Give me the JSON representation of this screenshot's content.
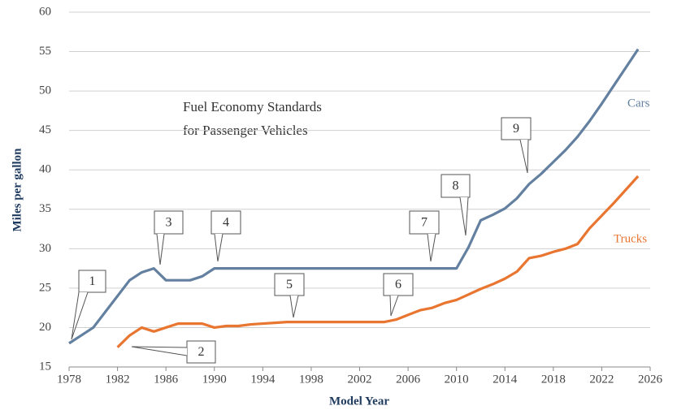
{
  "chart_data": {
    "type": "line",
    "title": [
      "Fuel Economy Standards",
      "for Passenger Vehicles"
    ],
    "xlabel": "Model Year",
    "ylabel": "Miles per gallon",
    "x": [
      1978,
      1979,
      1980,
      1981,
      1982,
      1983,
      1984,
      1985,
      1986,
      1987,
      1988,
      1989,
      1990,
      1991,
      1992,
      1993,
      1994,
      1995,
      1996,
      1997,
      1998,
      1999,
      2000,
      2001,
      2002,
      2003,
      2004,
      2005,
      2006,
      2007,
      2008,
      2009,
      2010,
      2011,
      2012,
      2013,
      2014,
      2015,
      2016,
      2017,
      2018,
      2019,
      2020,
      2021,
      2022,
      2023,
      2024,
      2025
    ],
    "series": [
      {
        "name": "Cars",
        "color": "#6480a0",
        "values": [
          18,
          19,
          20,
          22,
          24,
          26,
          27,
          27.5,
          26,
          26,
          26,
          26.5,
          27.5,
          27.5,
          27.5,
          27.5,
          27.5,
          27.5,
          27.5,
          27.5,
          27.5,
          27.5,
          27.5,
          27.5,
          27.5,
          27.5,
          27.5,
          27.5,
          27.5,
          27.5,
          27.5,
          27.5,
          27.5,
          30.2,
          33.6,
          34.3,
          35.1,
          36.4,
          38.2,
          39.5,
          41,
          42.5,
          44.2,
          46.2,
          48.4,
          50.7,
          53,
          55.3
        ]
      },
      {
        "name": "Trucks",
        "color": "#e87530",
        "values": [
          null,
          null,
          null,
          null,
          17.5,
          19,
          20,
          19.5,
          20,
          20.5,
          20.5,
          20.5,
          20,
          20.2,
          20.2,
          20.4,
          20.5,
          20.6,
          20.7,
          20.7,
          20.7,
          20.7,
          20.7,
          20.7,
          20.7,
          20.7,
          20.7,
          21,
          21.6,
          22.2,
          22.5,
          23.1,
          23.5,
          24.2,
          24.9,
          25.5,
          26.2,
          27.1,
          28.8,
          29.1,
          29.6,
          30,
          30.6,
          32.6,
          34.2,
          35.8,
          37.5,
          39.2
        ]
      }
    ],
    "xlim": [
      1978,
      2026
    ],
    "xticks": [
      1978,
      1982,
      1986,
      1990,
      1994,
      1998,
      2002,
      2006,
      2010,
      2014,
      2018,
      2022,
      2026
    ],
    "ylim": [
      15,
      60
    ],
    "yticks": [
      15,
      20,
      25,
      30,
      35,
      40,
      45,
      50,
      55,
      60
    ],
    "grid": true,
    "annotations": [
      "1",
      "2",
      "3",
      "4",
      "5",
      "6",
      "7",
      "8",
      "9"
    ]
  }
}
